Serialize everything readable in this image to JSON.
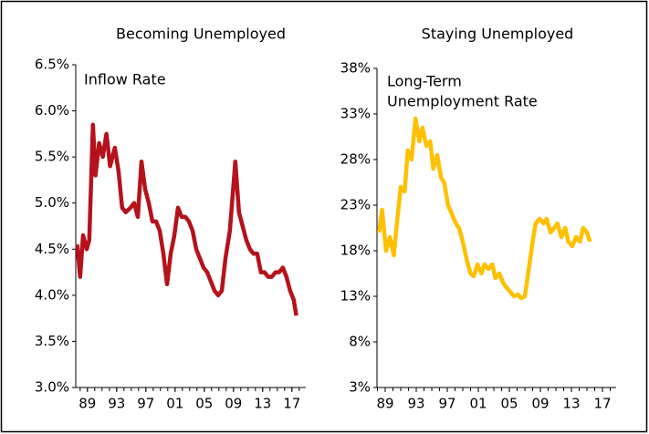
{
  "chart_data": [
    {
      "type": "line",
      "title": "Becoming Unemployed",
      "annotation": [
        "Inflow Rate"
      ],
      "xlim": [
        1987.4,
        2018.9
      ],
      "xticks": [
        {
          "value": 1989,
          "label": "89"
        },
        {
          "value": 1993,
          "label": "93"
        },
        {
          "value": 1997,
          "label": "97"
        },
        {
          "value": 2001,
          "label": "01"
        },
        {
          "value": 2005,
          "label": "05"
        },
        {
          "value": 2009,
          "label": "09"
        },
        {
          "value": 2013,
          "label": "13"
        },
        {
          "value": 2017,
          "label": "17"
        }
      ],
      "ylim": [
        3.0,
        6.5
      ],
      "yticks": [
        {
          "value": 3.0,
          "label": "3.0%"
        },
        {
          "value": 3.5,
          "label": "3.5%"
        },
        {
          "value": 4.0,
          "label": "4.0%"
        },
        {
          "value": 4.5,
          "label": "4.5%"
        },
        {
          "value": 5.0,
          "label": "5.0%"
        },
        {
          "value": 5.5,
          "label": "5.5%"
        },
        {
          "value": 6.0,
          "label": "6.0%"
        },
        {
          "value": 6.5,
          "label": "6.5%"
        }
      ],
      "x": [
        1987.6,
        1988.0,
        1988.4,
        1988.9,
        1989.25,
        1989.75,
        1990.1,
        1990.6,
        1991.1,
        1991.6,
        1992.1,
        1992.75,
        1993.25,
        1993.75,
        1994.25,
        1994.9,
        1995.4,
        1995.9,
        1996.4,
        1996.9,
        1997.4,
        1997.9,
        1998.4,
        1998.9,
        1999.4,
        1999.9,
        2000.4,
        2000.9,
        2001.4,
        2001.9,
        2002.4,
        2002.9,
        2003.4,
        2003.9,
        2004.4,
        2004.9,
        2005.4,
        2005.9,
        2006.4,
        2006.9,
        2007.4,
        2007.9,
        2008.5,
        2009.25,
        2009.75,
        2010.25,
        2010.75,
        2011.25,
        2011.75,
        2012.25,
        2012.75,
        2013.25,
        2013.75,
        2014.25,
        2014.75,
        2015.25,
        2015.75,
        2016.25,
        2016.75,
        2017.25,
        2017.6
      ],
      "series": [
        {
          "color": "#b5121b",
          "values": [
            4.55,
            4.2,
            4.65,
            4.5,
            4.6,
            5.85,
            5.3,
            5.65,
            5.5,
            5.75,
            5.4,
            5.6,
            5.35,
            4.95,
            4.9,
            4.95,
            5.0,
            4.85,
            5.45,
            5.15,
            5.0,
            4.8,
            4.8,
            4.7,
            4.45,
            4.12,
            4.45,
            4.65,
            4.95,
            4.85,
            4.85,
            4.8,
            4.7,
            4.5,
            4.4,
            4.3,
            4.25,
            4.15,
            4.05,
            4.0,
            4.05,
            4.4,
            4.7,
            5.45,
            4.9,
            4.75,
            4.6,
            4.5,
            4.45,
            4.45,
            4.25,
            4.25,
            4.2,
            4.2,
            4.25,
            4.25,
            4.3,
            4.2,
            4.05,
            3.95,
            3.78
          ]
        }
      ]
    },
    {
      "type": "line",
      "title": "Staying Unemployed",
      "annotation": [
        "Long-Term",
        "Unemployment Rate"
      ],
      "xlim": [
        1987.94,
        2018.76
      ],
      "xticks": [
        {
          "value": 1989,
          "label": "89"
        },
        {
          "value": 1993,
          "label": "93"
        },
        {
          "value": 1997,
          "label": "97"
        },
        {
          "value": 2001,
          "label": "01"
        },
        {
          "value": 2005,
          "label": "05"
        },
        {
          "value": 2009,
          "label": "09"
        },
        {
          "value": 2013,
          "label": "13"
        },
        {
          "value": 2017,
          "label": "17"
        }
      ],
      "ylim": [
        3,
        38
      ],
      "yticks": [
        {
          "value": 3,
          "label": "3%"
        },
        {
          "value": 8,
          "label": "8%"
        },
        {
          "value": 13,
          "label": "13%"
        },
        {
          "value": 18,
          "label": "18%"
        },
        {
          "value": 23,
          "label": "23%"
        },
        {
          "value": 28,
          "label": "28%"
        },
        {
          "value": 33,
          "label": "33%"
        },
        {
          "value": 38,
          "label": "38%"
        }
      ],
      "x": [
        1988.2,
        1988.6,
        1989.1,
        1989.6,
        1990.1,
        1990.5,
        1991.0,
        1991.5,
        1991.9,
        1992.4,
        1992.9,
        1993.4,
        1993.8,
        1994.3,
        1994.8,
        1995.2,
        1995.7,
        1996.2,
        1996.6,
        1997.1,
        1997.6,
        1998.1,
        1998.5,
        1999.0,
        1999.5,
        2000.0,
        2000.4,
        2000.9,
        2001.4,
        2001.8,
        2002.3,
        2002.8,
        2003.2,
        2003.7,
        2004.2,
        2004.6,
        2005.1,
        2005.6,
        2006.1,
        2006.5,
        2007.0,
        2007.5,
        2008.0,
        2008.4,
        2008.9,
        2009.4,
        2009.8,
        2010.3,
        2010.8,
        2011.2,
        2011.7,
        2012.2,
        2012.6,
        2013.1,
        2013.6,
        2014.1,
        2014.5,
        2015.0,
        2015.4
      ],
      "series": [
        {
          "color": "#ffc000",
          "values": [
            20,
            22.5,
            18,
            19.5,
            17.5,
            21,
            25,
            24.5,
            29,
            28,
            32.5,
            30,
            31.5,
            29.5,
            30,
            27,
            28.5,
            26,
            25.5,
            23,
            22,
            21,
            20.5,
            19,
            17,
            15.5,
            15.2,
            16.5,
            15.5,
            16.5,
            16,
            16.5,
            15,
            15.5,
            14.5,
            14,
            13.5,
            13,
            13.2,
            12.8,
            13,
            16,
            19,
            21,
            21.5,
            21,
            21.5,
            20,
            20.5,
            21,
            19.5,
            20.5,
            19,
            18.5,
            19.5,
            19,
            20.5,
            20,
            19
          ]
        }
      ]
    }
  ]
}
